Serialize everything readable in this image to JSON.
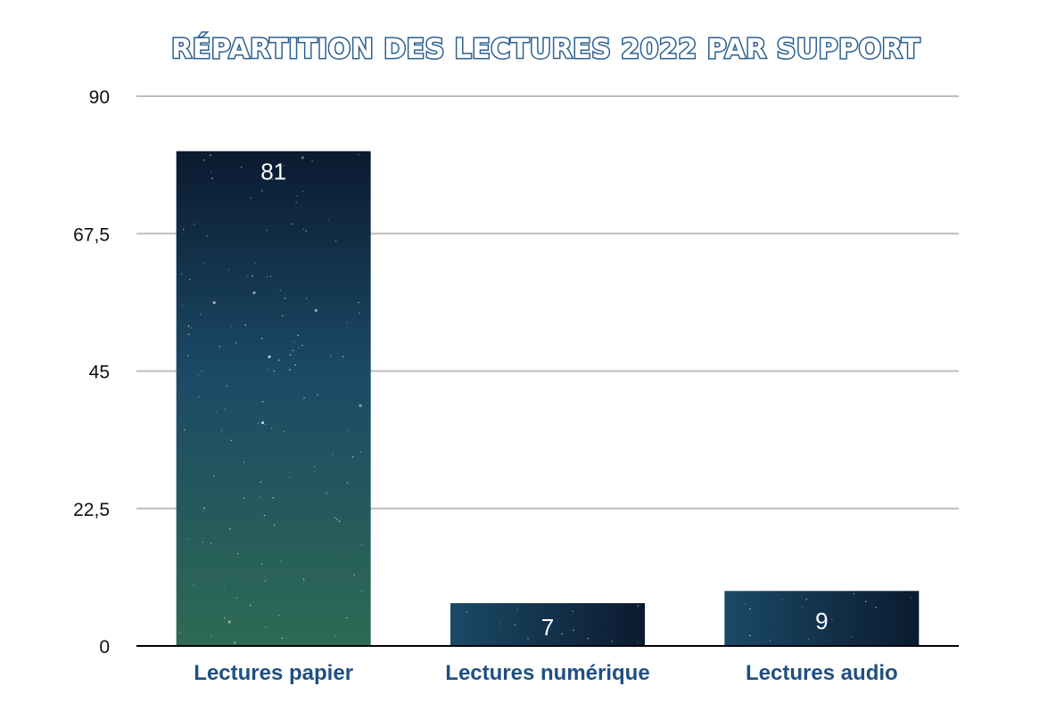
{
  "chart_data": {
    "type": "bar",
    "title": "RÉPARTITION DES LECTURES 2022 PAR SUPPORT",
    "categories": [
      "Lectures papier",
      "Lectures numérique",
      "Lectures audio"
    ],
    "values": [
      81,
      7,
      9
    ],
    "data_labels": [
      "81",
      "7",
      "9"
    ],
    "ylim": [
      0,
      90
    ],
    "y_ticks": [
      0,
      22.5,
      45,
      67.5,
      90
    ],
    "y_tick_labels": [
      "0",
      "22,5",
      "45",
      "67,5",
      "90"
    ],
    "grid": true,
    "legend": "none",
    "colors": {
      "bar_top": "#0b1a30",
      "bar_mid": "#1b4a66",
      "bar_bottom": "#2e6a54",
      "axis_text": "#1f4f80",
      "title_stroke": "#2b5f8f"
    }
  }
}
